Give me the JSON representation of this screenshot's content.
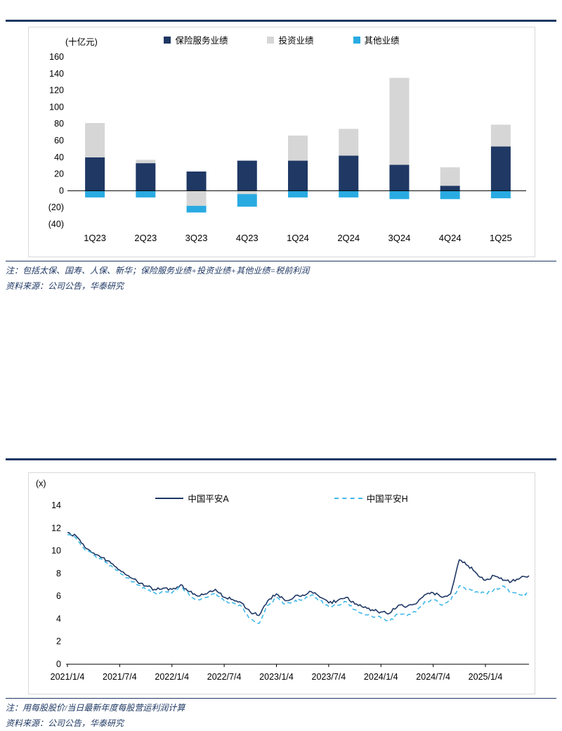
{
  "page": {
    "background": "#ffffff",
    "accent_rule_color": "#1f3864",
    "note_text_color": "#1f3864"
  },
  "chart_data": [
    {
      "type": "bar",
      "stacked": true,
      "unit": "(十亿元)",
      "legend_position": "top",
      "grid": false,
      "categories": [
        "1Q23",
        "2Q23",
        "3Q23",
        "4Q23",
        "1Q24",
        "2Q24",
        "3Q24",
        "4Q24",
        "1Q25"
      ],
      "series": [
        {
          "name": "保险服务业绩",
          "color": "#1f3864",
          "values": [
            40,
            33,
            23,
            36,
            36,
            42,
            31,
            6,
            53
          ]
        },
        {
          "name": "投资业绩",
          "color": "#d6d6d6",
          "values": [
            41,
            4,
            -18,
            -4,
            30,
            32,
            104,
            22,
            26
          ]
        },
        {
          "name": "其他业绩",
          "color": "#29abe2",
          "values": [
            -8,
            -8,
            -8,
            -15,
            -8,
            -8,
            -10,
            -10,
            -9
          ]
        }
      ],
      "ylim": [
        -40,
        160
      ],
      "y_ticks": [
        {
          "v": 160,
          "label": "160"
        },
        {
          "v": 140,
          "label": "140"
        },
        {
          "v": 120,
          "label": "120"
        },
        {
          "v": 100,
          "label": "100"
        },
        {
          "v": 80,
          "label": "80"
        },
        {
          "v": 60,
          "label": "60"
        },
        {
          "v": 40,
          "label": "40"
        },
        {
          "v": 20,
          "label": "20"
        },
        {
          "v": 0,
          "label": "0"
        },
        {
          "v": -20,
          "label": "(20)"
        },
        {
          "v": -40,
          "label": "(40)"
        }
      ],
      "notes": [
        "注：包括太保、国寿、人保、新华；保险服务业绩+投资业绩+其他业绩=税前利润",
        "资料来源：公司公告，华泰研究"
      ]
    },
    {
      "type": "line",
      "unit": "(x)",
      "legend_position": "top",
      "grid": false,
      "x_start": "2021-01",
      "x_frequency": "monthly",
      "x_ticks": [
        "2021/1/4",
        "2021/7/4",
        "2022/1/4",
        "2022/7/4",
        "2023/1/4",
        "2023/7/4",
        "2024/1/4",
        "2024/7/4",
        "2025/1/4"
      ],
      "x_tick_indices": [
        0,
        6,
        12,
        18,
        24,
        30,
        36,
        42,
        48
      ],
      "ylim": [
        0,
        14
      ],
      "y_ticks": [
        14,
        12,
        10,
        8,
        6,
        4,
        2,
        0
      ],
      "series": [
        {
          "name": "中国平安A",
          "color": "#1f3864",
          "dashed": false,
          "values": [
            11.6,
            11.3,
            10.3,
            9.8,
            9.4,
            8.9,
            8.3,
            7.8,
            7.3,
            6.9,
            6.6,
            6.7,
            6.6,
            7.0,
            6.4,
            6.0,
            6.2,
            6.6,
            5.9,
            5.7,
            5.4,
            4.6,
            4.3,
            5.6,
            6.2,
            5.6,
            5.9,
            6.1,
            6.4,
            5.9,
            5.4,
            5.6,
            5.9,
            5.3,
            5.0,
            4.8,
            4.6,
            4.5,
            5.2,
            5.1,
            5.3,
            6.1,
            6.3,
            5.9,
            6.2,
            9.2,
            8.7,
            8.0,
            7.4,
            7.8,
            7.4,
            7.3,
            7.6,
            7.8
          ]
        },
        {
          "name": "中国平安H",
          "color": "#41b9e8",
          "dashed": true,
          "values": [
            11.4,
            11.1,
            10.1,
            9.6,
            9.2,
            8.7,
            8.1,
            7.6,
            7.0,
            6.6,
            6.3,
            6.4,
            6.3,
            6.8,
            6.1,
            5.7,
            5.9,
            6.3,
            5.6,
            5.4,
            5.1,
            4.0,
            3.6,
            5.2,
            5.9,
            5.3,
            5.5,
            5.7,
            6.1,
            5.6,
            5.1,
            5.2,
            5.5,
            4.8,
            4.4,
            4.2,
            4.1,
            3.8,
            4.4,
            4.3,
            4.6,
            5.5,
            5.7,
            5.2,
            5.6,
            6.9,
            6.6,
            6.4,
            6.2,
            6.6,
            6.9,
            6.3,
            6.1,
            6.3
          ]
        }
      ],
      "notes": [
        "注：用每股股价/当日最新年度每股营运利润计算",
        "资料来源：公司公告，华泰研究"
      ]
    }
  ]
}
